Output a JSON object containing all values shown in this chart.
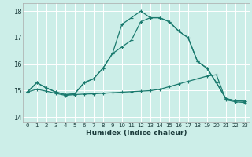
{
  "xlabel": "Humidex (Indice chaleur)",
  "bg_color": "#cceee8",
  "grid_color": "#ffffff",
  "line_color": "#1a7a6e",
  "xlim": [
    -0.5,
    23.5
  ],
  "ylim": [
    13.8,
    18.3
  ],
  "xticks": [
    0,
    1,
    2,
    3,
    4,
    5,
    6,
    7,
    8,
    9,
    10,
    11,
    12,
    13,
    14,
    15,
    16,
    17,
    18,
    19,
    20,
    21,
    22,
    23
  ],
  "yticks": [
    14,
    15,
    16,
    17,
    18
  ],
  "line1_y": [
    14.95,
    15.3,
    15.1,
    14.95,
    14.85,
    14.88,
    15.3,
    15.45,
    15.85,
    16.4,
    17.5,
    17.75,
    18.0,
    17.75,
    17.75,
    17.6,
    17.25,
    17.0,
    16.1,
    15.85,
    15.3,
    14.7,
    14.62,
    14.6
  ],
  "line2_y": [
    14.95,
    15.3,
    15.1,
    14.95,
    14.85,
    14.88,
    15.3,
    15.45,
    15.85,
    16.4,
    16.65,
    16.9,
    17.6,
    17.75,
    17.75,
    17.6,
    17.25,
    17.0,
    16.1,
    15.85,
    15.3,
    14.7,
    14.62,
    14.6
  ],
  "line3_y": [
    14.95,
    15.05,
    14.98,
    14.9,
    14.82,
    14.85,
    14.87,
    14.88,
    14.9,
    14.92,
    14.94,
    14.96,
    14.98,
    15.0,
    15.05,
    15.15,
    15.25,
    15.35,
    15.45,
    15.55,
    15.6,
    14.65,
    14.58,
    14.55
  ]
}
